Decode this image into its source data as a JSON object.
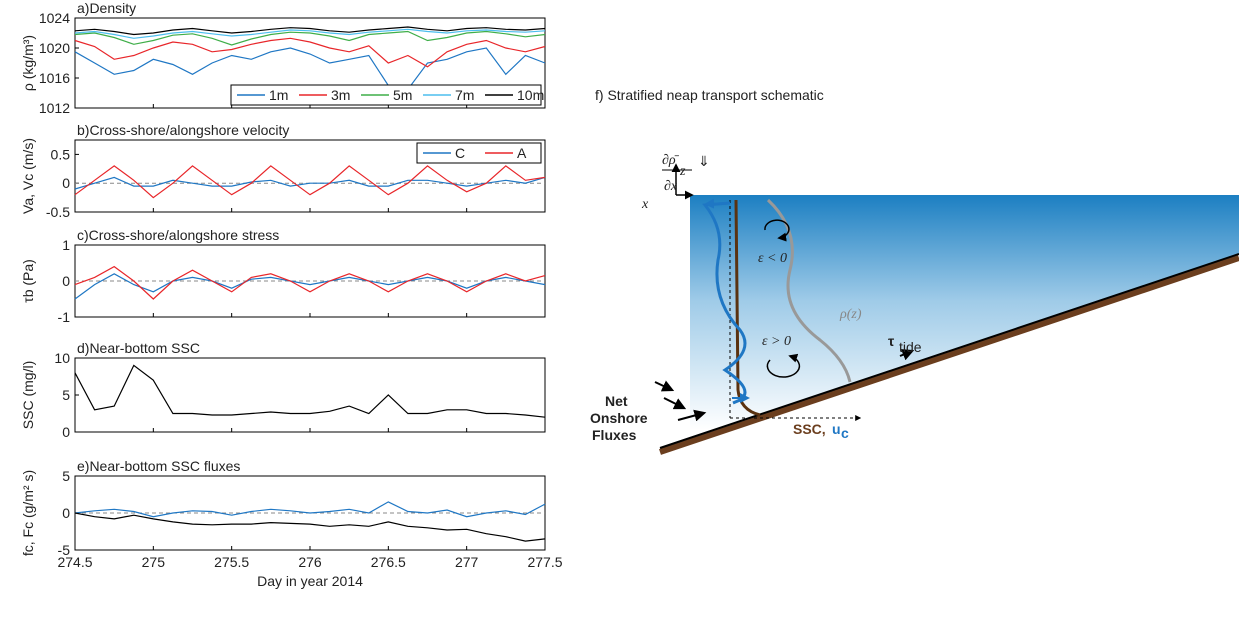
{
  "chart_data": [
    {
      "type": "line",
      "title": "a)Density",
      "y_label": "ρ (kg/m³)",
      "x": [
        274.5,
        274.625,
        274.75,
        274.875,
        275,
        275.125,
        275.25,
        275.375,
        275.5,
        275.625,
        275.75,
        275.875,
        276,
        276.125,
        276.25,
        276.375,
        276.5,
        276.625,
        276.75,
        276.875,
        277,
        277.125,
        277.25,
        277.375,
        277.5
      ],
      "ylim": [
        1012,
        1024
      ],
      "yticks": [
        1012,
        1016,
        1020,
        1024
      ],
      "legend": "bottom-right",
      "series": [
        {
          "name": "1m",
          "color": "#1f77c4",
          "values": [
            1019.5,
            1018.0,
            1016.5,
            1017.0,
            1018.5,
            1017.8,
            1016.5,
            1018.0,
            1019.0,
            1018.5,
            1019.5,
            1020.0,
            1019.2,
            1018.0,
            1018.5,
            1019.0,
            1015.0,
            1014.5,
            1018.0,
            1018.5,
            1019.5,
            1020.0,
            1016.5,
            1019.0,
            1018.0
          ]
        },
        {
          "name": "3m",
          "color": "#e8262a",
          "values": [
            1021.0,
            1020.2,
            1018.5,
            1019.0,
            1020.0,
            1020.8,
            1020.5,
            1019.5,
            1019.8,
            1020.5,
            1021.0,
            1021.3,
            1020.8,
            1020.0,
            1019.5,
            1020.3,
            1018.0,
            1019.0,
            1017.5,
            1019.5,
            1020.5,
            1021.0,
            1020.0,
            1019.5,
            1020.2
          ]
        },
        {
          "name": "5m",
          "color": "#3fae49",
          "values": [
            1021.8,
            1022.0,
            1021.4,
            1020.5,
            1021.0,
            1021.7,
            1021.9,
            1021.3,
            1020.4,
            1021.2,
            1021.8,
            1022.1,
            1022.0,
            1021.6,
            1021.0,
            1021.8,
            1022.0,
            1022.2,
            1021.0,
            1021.4,
            1022.0,
            1022.2,
            1021.9,
            1021.5,
            1021.8
          ]
        },
        {
          "name": "7m",
          "color": "#4dbeee",
          "values": [
            1022.0,
            1022.2,
            1021.8,
            1021.3,
            1021.6,
            1022.0,
            1022.2,
            1021.9,
            1021.6,
            1021.8,
            1022.1,
            1022.4,
            1022.3,
            1022.0,
            1021.8,
            1022.1,
            1022.3,
            1022.5,
            1022.2,
            1022.0,
            1022.3,
            1022.4,
            1022.2,
            1022.1,
            1022.3
          ]
        },
        {
          "name": "10m",
          "color": "#000000",
          "values": [
            1022.3,
            1022.5,
            1022.2,
            1021.8,
            1022.0,
            1022.4,
            1022.6,
            1022.3,
            1022.0,
            1022.2,
            1022.5,
            1022.7,
            1022.6,
            1022.3,
            1022.1,
            1022.4,
            1022.6,
            1022.8,
            1022.5,
            1022.3,
            1022.6,
            1022.7,
            1022.5,
            1022.4,
            1022.6
          ]
        }
      ]
    },
    {
      "type": "line",
      "title": "b)Cross-shore/alongshore velocity",
      "y_label": "Va, Vc (m/s)",
      "x": [
        274.5,
        274.625,
        274.75,
        274.875,
        275,
        275.125,
        275.25,
        275.375,
        275.5,
        275.625,
        275.75,
        275.875,
        276,
        276.125,
        276.25,
        276.375,
        276.5,
        276.625,
        276.75,
        276.875,
        277,
        277.125,
        277.25,
        277.375,
        277.5
      ],
      "ylim": [
        -0.5,
        0.75
      ],
      "yticks": [
        -0.5,
        0,
        0.5
      ],
      "legend": "top-right",
      "zero_line": true,
      "series": [
        {
          "name": "C",
          "color": "#1f77c4",
          "values": [
            -0.1,
            0.0,
            0.1,
            -0.05,
            -0.05,
            0.05,
            0.0,
            -0.05,
            -0.05,
            0.02,
            0.05,
            -0.05,
            0.0,
            0.0,
            0.05,
            -0.05,
            -0.05,
            0.05,
            0.05,
            0.0,
            -0.05,
            0.0,
            0.05,
            0.0,
            0.1
          ]
        },
        {
          "name": "A",
          "color": "#e8262a",
          "values": [
            -0.2,
            0.05,
            0.3,
            0.05,
            -0.25,
            0.0,
            0.3,
            0.05,
            -0.2,
            0.0,
            0.3,
            0.05,
            -0.2,
            0.0,
            0.3,
            0.05,
            -0.2,
            0.0,
            0.3,
            0.05,
            -0.15,
            0.0,
            0.3,
            0.05,
            0.1
          ]
        }
      ]
    },
    {
      "type": "line",
      "title": "c)Cross-shore/alongshore stress",
      "y_label": "τb (Pa)",
      "x": [
        274.5,
        274.625,
        274.75,
        274.875,
        275,
        275.125,
        275.25,
        275.375,
        275.5,
        275.625,
        275.75,
        275.875,
        276,
        276.125,
        276.25,
        276.375,
        276.5,
        276.625,
        276.75,
        276.875,
        277,
        277.125,
        277.25,
        277.375,
        277.5
      ],
      "ylim": [
        -1,
        1
      ],
      "yticks": [
        -1,
        0,
        1
      ],
      "zero_line": true,
      "series": [
        {
          "color": "#1f77c4",
          "values": [
            -0.5,
            -0.1,
            0.2,
            -0.1,
            -0.3,
            0.0,
            0.1,
            0.0,
            -0.2,
            0.05,
            0.1,
            0.0,
            -0.1,
            0.0,
            0.1,
            0.0,
            -0.1,
            0.0,
            0.1,
            0.0,
            -0.2,
            0.0,
            0.1,
            0.0,
            -0.1
          ]
        },
        {
          "color": "#e8262a",
          "values": [
            -0.1,
            0.1,
            0.4,
            0.0,
            -0.5,
            0.0,
            0.3,
            0.0,
            -0.3,
            0.1,
            0.2,
            0.0,
            -0.3,
            0.0,
            0.2,
            0.0,
            -0.3,
            0.0,
            0.2,
            0.0,
            -0.3,
            0.0,
            0.2,
            0.0,
            0.15
          ]
        }
      ]
    },
    {
      "type": "line",
      "title": "d)Near-bottom SSC",
      "y_label": "SSC (mg/l)",
      "x": [
        274.5,
        274.625,
        274.75,
        274.875,
        275,
        275.125,
        275.25,
        275.375,
        275.5,
        275.625,
        275.75,
        275.875,
        276,
        276.125,
        276.25,
        276.375,
        276.5,
        276.625,
        276.75,
        276.875,
        277,
        277.125,
        277.25,
        277.375,
        277.5
      ],
      "ylim": [
        0,
        10
      ],
      "yticks": [
        0,
        5,
        10
      ],
      "series": [
        {
          "color": "#000000",
          "values": [
            8.0,
            3.0,
            3.5,
            9.0,
            7.0,
            2.5,
            2.5,
            2.3,
            2.3,
            2.5,
            2.7,
            2.5,
            2.5,
            2.8,
            3.5,
            2.5,
            5.0,
            2.5,
            2.5,
            3.0,
            3.0,
            2.5,
            2.5,
            2.3,
            2.0
          ]
        }
      ]
    },
    {
      "type": "line",
      "title": "e)Near-bottom SSC fluxes",
      "y_label": "fc, Fc (g/m² s)",
      "x_label": "Day in year 2014",
      "x": [
        274.5,
        274.625,
        274.75,
        274.875,
        275,
        275.125,
        275.25,
        275.375,
        275.5,
        275.625,
        275.75,
        275.875,
        276,
        276.125,
        276.25,
        276.375,
        276.5,
        276.625,
        276.75,
        276.875,
        277,
        277.125,
        277.25,
        277.375,
        277.5
      ],
      "xlim": [
        274.5,
        277.5
      ],
      "xticks": [
        274.5,
        275,
        275.5,
        276,
        276.5,
        277,
        277.5
      ],
      "ylim": [
        -5,
        5
      ],
      "yticks": [
        -5,
        0,
        5
      ],
      "zero_line": true,
      "series": [
        {
          "color": "#1f77c4",
          "values": [
            0,
            0.3,
            0.5,
            0.2,
            -0.5,
            0,
            0.3,
            0.2,
            -0.3,
            0.2,
            0.5,
            0.3,
            0,
            0.2,
            0.5,
            0,
            1.5,
            0.2,
            0,
            0.4,
            -0.5,
            0,
            0.3,
            -0.2,
            1.2
          ]
        },
        {
          "color": "#000000",
          "values": [
            0,
            -0.5,
            -0.8,
            -0.3,
            -0.8,
            -1.2,
            -1.5,
            -1.6,
            -1.5,
            -1.5,
            -1.3,
            -1.4,
            -1.5,
            -1.8,
            -1.6,
            -1.8,
            -1.2,
            -1.8,
            -2.0,
            -2.3,
            -2.2,
            -2.8,
            -3.2,
            -3.8,
            -3.5
          ]
        }
      ]
    }
  ],
  "schematic": {
    "title": "f) Stratified neap transport schematic",
    "labels": {
      "drho": "∂ρ̄",
      "dx": "∂x",
      "arrow": "⇓",
      "z": "z",
      "x": "x",
      "eps_neg": "ε < 0",
      "eps_pos": "ε > 0",
      "rho": "ρ(z)",
      "tau": "τ",
      "tide": "tide",
      "net": "Net",
      "onshore": "Onshore",
      "fluxes": "Fluxes",
      "ssc": "SSC,",
      "u": "u",
      "c": "c"
    }
  }
}
